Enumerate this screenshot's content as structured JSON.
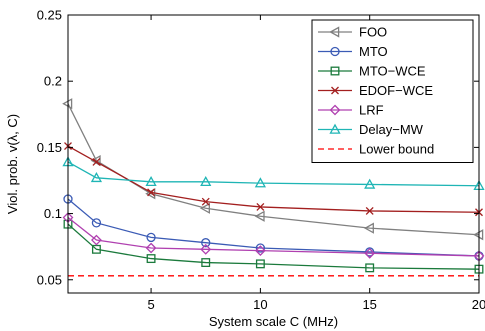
{
  "chart_data": {
    "type": "line",
    "xlabel": "System scale C (MHz)",
    "ylabel": "Viol. prob. v(λ, C)",
    "xlim": [
      1.2,
      20
    ],
    "ylim": [
      0.04,
      0.25
    ],
    "xticks": [
      5,
      10,
      15,
      20
    ],
    "yticks": [
      0.05,
      0.1,
      0.15,
      0.2,
      0.25
    ],
    "xtick_labels": [
      "5",
      "10",
      "15",
      "20"
    ],
    "ytick_labels": [
      "0.05",
      "0.1",
      "0.15",
      "0.2",
      "0.25"
    ],
    "legend_position": "top-right",
    "grid": false,
    "series": [
      {
        "name": "FOO",
        "color": "#808080",
        "marker": "triangle-left",
        "x": [
          1.2,
          2.5,
          5,
          7.5,
          10,
          15,
          20
        ],
        "y": [
          0.183,
          0.14,
          0.115,
          0.104,
          0.098,
          0.089,
          0.084
        ]
      },
      {
        "name": "MTO",
        "color": "#3b5bb5",
        "marker": "circle",
        "x": [
          1.2,
          2.5,
          5,
          7.5,
          10,
          15,
          20
        ],
        "y": [
          0.111,
          0.093,
          0.082,
          0.078,
          0.074,
          0.071,
          0.068
        ]
      },
      {
        "name": "MTO−WCE",
        "color": "#1b7a3c",
        "marker": "square",
        "x": [
          1.2,
          2.5,
          5,
          7.5,
          10,
          15,
          20
        ],
        "y": [
          0.092,
          0.073,
          0.066,
          0.063,
          0.062,
          0.059,
          0.058
        ]
      },
      {
        "name": "EDOF−WCE",
        "color": "#a31f1f",
        "marker": "x",
        "x": [
          1.2,
          2.5,
          5,
          7.5,
          10,
          15,
          20
        ],
        "y": [
          0.151,
          0.139,
          0.116,
          0.109,
          0.105,
          0.102,
          0.101
        ]
      },
      {
        "name": "LRF",
        "color": "#b040b0",
        "marker": "diamond",
        "x": [
          1.2,
          2.5,
          5,
          7.5,
          10,
          15,
          20
        ],
        "y": [
          0.097,
          0.08,
          0.074,
          0.073,
          0.072,
          0.07,
          0.068
        ]
      },
      {
        "name": "Delay−MW",
        "color": "#1fb5b5",
        "marker": "triangle-up",
        "x": [
          1.2,
          2.5,
          5,
          7.5,
          10,
          15,
          20
        ],
        "y": [
          0.139,
          0.127,
          0.124,
          0.124,
          0.123,
          0.122,
          0.121
        ]
      },
      {
        "name": "Lower bound",
        "color": "#ff0000",
        "marker": "none",
        "dashed": true,
        "x": [
          1.2,
          20
        ],
        "y": [
          0.053,
          0.053
        ]
      }
    ]
  }
}
